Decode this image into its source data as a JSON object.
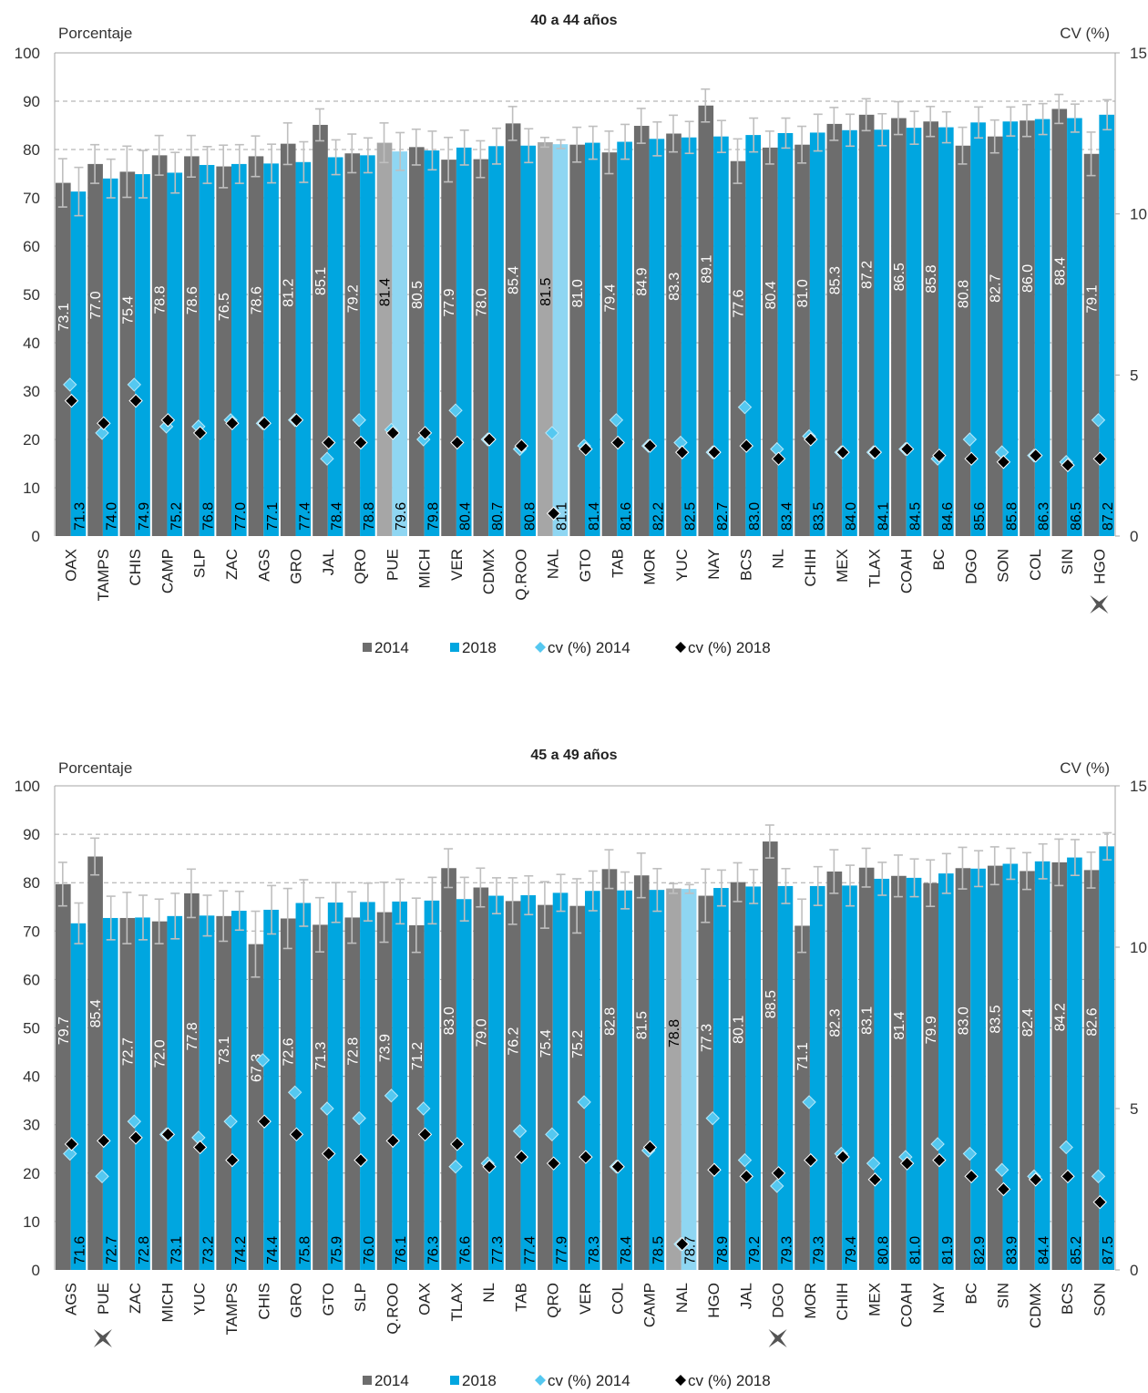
{
  "colors": {
    "bar_2014": "#6d6d6d",
    "bar_2018": "#00a6e0",
    "bar_2014_highlight": "#a6a6a6",
    "bar_2018_highlight": "#8fd6f2",
    "cv_2014": "#55c8f0",
    "cv_2018": "#000000",
    "error_bar": "#bfbfbf",
    "grid": "#a6a6a6"
  },
  "legend": {
    "items": [
      {
        "label": "2014",
        "marker": "square",
        "color": "#6d6d6d"
      },
      {
        "label": "2018",
        "marker": "square",
        "color": "#00a6e0"
      },
      {
        "label": "cv (%) 2014",
        "marker": "diamond",
        "color": "#55c8f0"
      },
      {
        "label": "cv (%) 2018",
        "marker": "diamond",
        "color": "#000000"
      }
    ]
  },
  "chart_data": [
    {
      "type": "bar",
      "title": "40 a 44 años",
      "ylabel": "Porcentaje",
      "y2label": "CV (%)",
      "ylim": [
        0,
        100
      ],
      "y2lim": [
        0,
        15
      ],
      "yticks": [
        "0",
        "10",
        "20",
        "30",
        "40",
        "50",
        "60",
        "70",
        "80",
        "90",
        "100"
      ],
      "y2ticks": [
        "0",
        "5",
        "10",
        "15"
      ],
      "grid": "dashed",
      "legend_position": "bottom",
      "categories": [
        "OAX",
        "TAMPS",
        "CHIS",
        "CAMP",
        "SLP",
        "ZAC",
        "AGS",
        "GRO",
        "JAL",
        "QRO",
        "PUE",
        "MICH",
        "VER",
        "CDMX",
        "Q.ROO",
        "NAL",
        "GTO",
        "TAB",
        "MOR",
        "YUC",
        "NAY",
        "BCS",
        "NL",
        "CHIH",
        "MEX",
        "TLAX",
        "COAH",
        "BC",
        "DGO",
        "SON",
        "COL",
        "SIN",
        "HGO"
      ],
      "highlight": [
        "PUE",
        "NAL"
      ],
      "marked": [
        "HGO"
      ],
      "series": [
        {
          "name": "2014",
          "axis": "left",
          "labels": [
            "73.1",
            "77.0",
            "75.4",
            "78.8",
            "78.6",
            "76.5",
            "78.6",
            "81.2",
            "85.1",
            "79.2",
            "81.4",
            "80.5",
            "77.9",
            "78.0",
            "85.4",
            "81.5",
            "81.0",
            "79.4",
            "84.9",
            "83.3",
            "89.1",
            "77.6",
            "80.4",
            "81.0",
            "85.3",
            "87.2",
            "86.5",
            "85.8",
            "80.8",
            "82.7",
            "86.0",
            "88.4",
            "79.1"
          ],
          "values": [
            73.1,
            77.0,
            75.4,
            78.8,
            78.6,
            76.5,
            78.6,
            81.2,
            85.1,
            79.2,
            81.4,
            80.5,
            77.9,
            78.0,
            85.4,
            81.5,
            81.0,
            79.4,
            84.9,
            83.3,
            89.1,
            77.6,
            80.4,
            81.0,
            85.3,
            87.2,
            86.5,
            85.8,
            80.8,
            82.7,
            86.0,
            88.4,
            79.1
          ]
        },
        {
          "name": "2018",
          "axis": "left",
          "labels": [
            "71.3",
            "74.0",
            "74.9",
            "75.2",
            "76.8",
            "77.0",
            "77.1",
            "77.4",
            "78.4",
            "78.8",
            "79.6",
            "79.8",
            "80.4",
            "80.7",
            "80.8",
            "81.1",
            "81.4",
            "81.6",
            "82.2",
            "82.5",
            "82.7",
            "83.0",
            "83.4",
            "83.5",
            "84.0",
            "84.1",
            "84.5",
            "84.6",
            "85.6",
            "85.8",
            "86.3",
            "86.5",
            "87.2"
          ],
          "values": [
            71.3,
            74.0,
            74.9,
            75.2,
            76.8,
            77.0,
            77.1,
            77.4,
            78.4,
            78.8,
            79.6,
            79.8,
            80.4,
            80.7,
            80.8,
            81.1,
            81.4,
            81.6,
            82.2,
            82.5,
            82.7,
            83.0,
            83.4,
            83.5,
            84.0,
            84.1,
            84.5,
            84.6,
            85.6,
            85.8,
            86.3,
            86.5,
            87.2
          ]
        },
        {
          "name": "cv (%) 2014",
          "axis": "right",
          "values": [
            4.7,
            3.2,
            4.7,
            3.4,
            3.4,
            3.6,
            3.5,
            3.6,
            2.4,
            3.6,
            3.3,
            3.0,
            3.9,
            3.0,
            2.7,
            3.2,
            2.8,
            3.6,
            2.8,
            2.9,
            2.6,
            4.0,
            2.7,
            3.1,
            2.6,
            2.6,
            2.7,
            2.4,
            3.0,
            2.6,
            2.5,
            2.3,
            3.6
          ]
        },
        {
          "name": "cv (%) 2018",
          "axis": "right",
          "values": [
            4.2,
            3.5,
            4.2,
            3.6,
            3.2,
            3.5,
            3.5,
            3.6,
            2.9,
            2.9,
            3.2,
            3.2,
            2.9,
            3.0,
            2.8,
            0.7,
            2.7,
            2.9,
            2.8,
            2.6,
            2.6,
            2.8,
            2.4,
            3.0,
            2.6,
            2.6,
            2.7,
            2.5,
            2.4,
            2.3,
            2.5,
            2.2,
            2.4
          ]
        }
      ],
      "error": {
        "2014": [
          5.0,
          4.0,
          5.3,
          4.1,
          4.3,
          4.4,
          4.2,
          4.3,
          3.3,
          4.0,
          4.1,
          3.7,
          4.6,
          3.8,
          3.5,
          1.0,
          3.6,
          4.4,
          3.6,
          3.8,
          3.4,
          4.6,
          3.4,
          3.8,
          3.4,
          3.3,
          3.4,
          3.1,
          3.8,
          3.4,
          3.3,
          3.0,
          4.5
        ],
        "2018": [
          5.0,
          4.0,
          4.9,
          4.2,
          3.8,
          4.0,
          4.0,
          4.2,
          3.6,
          3.6,
          3.9,
          4.0,
          3.6,
          3.7,
          3.5,
          0.9,
          3.4,
          3.6,
          3.5,
          3.3,
          3.3,
          3.5,
          3.1,
          3.8,
          3.3,
          3.3,
          3.4,
          3.2,
          3.2,
          3.0,
          3.2,
          2.9,
          3.1
        ]
      }
    },
    {
      "type": "bar",
      "title": "45 a 49 años",
      "ylabel": "Porcentaje",
      "y2label": "CV (%)",
      "ylim": [
        0,
        100
      ],
      "y2lim": [
        0,
        15
      ],
      "yticks": [
        "0",
        "10",
        "20",
        "30",
        "40",
        "50",
        "60",
        "70",
        "80",
        "90",
        "100"
      ],
      "y2ticks": [
        "0",
        "5",
        "10",
        "15"
      ],
      "grid": "dashed",
      "legend_position": "bottom",
      "categories": [
        "AGS",
        "PUE",
        "ZAC",
        "MICH",
        "YUC",
        "TAMPS",
        "CHIS",
        "GRO",
        "GTO",
        "SLP",
        "Q.ROO",
        "OAX",
        "TLAX",
        "NL",
        "TAB",
        "QRO",
        "VER",
        "COL",
        "CAMP",
        "NAL",
        "HGO",
        "JAL",
        "DGO",
        "MOR",
        "CHIH",
        "MEX",
        "COAH",
        "NAY",
        "BC",
        "SIN",
        "CDMX",
        "BCS",
        "SON"
      ],
      "highlight": [
        "NAL"
      ],
      "marked": [
        "PUE",
        "DGO"
      ],
      "series": [
        {
          "name": "2014",
          "axis": "left",
          "labels": [
            "79.7",
            "85.4",
            "72.7",
            "72.0",
            "77.8",
            "73.1",
            "67.3",
            "72.6",
            "71.3",
            "72.8",
            "73.9",
            "71.2",
            "83.0",
            "79.0",
            "76.2",
            "75.4",
            "75.2",
            "82.8",
            "81.5",
            "78.8",
            "77.3",
            "80.1",
            "88.5",
            "71.1",
            "82.3",
            "83.1",
            "81.4",
            "79.9",
            "83.0",
            "83.5",
            "82.4",
            "84.2",
            "82.6"
          ],
          "values": [
            79.7,
            85.4,
            72.7,
            72.0,
            77.8,
            73.1,
            67.3,
            72.6,
            71.3,
            72.8,
            73.9,
            71.2,
            83.0,
            79.0,
            76.2,
            75.4,
            75.2,
            82.8,
            81.5,
            78.8,
            77.3,
            80.1,
            88.5,
            71.1,
            82.3,
            83.1,
            81.4,
            79.9,
            83.0,
            83.5,
            82.4,
            84.2,
            82.6
          ]
        },
        {
          "name": "2018",
          "axis": "left",
          "labels": [
            "71.6",
            "72.7",
            "72.8",
            "73.1",
            "73.2",
            "74.2",
            "74.4",
            "75.8",
            "75.9",
            "76.0",
            "76.1",
            "76.3",
            "76.6",
            "77.3",
            "77.4",
            "77.9",
            "78.3",
            "78.4",
            "78.5",
            "78.7",
            "78.9",
            "79.2",
            "79.3",
            "79.3",
            "79.4",
            "80.8",
            "81.0",
            "81.9",
            "82.9",
            "83.9",
            "84.4",
            "85.2",
            "87.5"
          ],
          "values": [
            71.6,
            72.7,
            72.8,
            73.1,
            73.2,
            74.2,
            74.4,
            75.8,
            75.9,
            76.0,
            76.1,
            76.3,
            76.6,
            77.3,
            77.4,
            77.9,
            78.3,
            78.4,
            78.5,
            78.7,
            78.9,
            79.2,
            79.3,
            79.3,
            79.4,
            80.8,
            81.0,
            81.9,
            82.9,
            83.9,
            84.4,
            85.2,
            87.5
          ]
        },
        {
          "name": "cv (%) 2014",
          "axis": "right",
          "values": [
            3.6,
            2.9,
            4.6,
            4.2,
            4.1,
            4.6,
            6.5,
            5.5,
            5.0,
            4.7,
            5.4,
            5.0,
            3.2,
            3.3,
            4.3,
            4.2,
            5.2,
            3.2,
            3.7,
            0.8,
            4.7,
            3.4,
            2.6,
            5.2,
            3.6,
            3.3,
            3.5,
            3.9,
            3.6,
            3.1,
            2.9,
            3.8,
            2.9
          ]
        },
        {
          "name": "cv (%) 2018",
          "axis": "right",
          "values": [
            3.9,
            4.0,
            4.1,
            4.2,
            3.8,
            3.4,
            4.6,
            4.2,
            3.6,
            3.4,
            4.0,
            4.2,
            3.9,
            3.2,
            3.5,
            3.3,
            3.5,
            3.2,
            3.8,
            0.8,
            3.1,
            2.9,
            3.0,
            3.4,
            3.5,
            2.8,
            3.3,
            3.4,
            2.9,
            2.5,
            2.8,
            2.9,
            2.1
          ]
        }
      ],
      "error": {
        "2014": [
          4.5,
          3.8,
          5.3,
          4.6,
          5.0,
          5.2,
          6.8,
          6.2,
          5.6,
          5.3,
          6.2,
          5.6,
          4.0,
          4.0,
          4.8,
          4.8,
          5.6,
          4.0,
          4.6,
          1.0,
          5.5,
          4.0,
          3.4,
          5.5,
          4.5,
          4.0,
          4.3,
          4.8,
          4.3,
          3.9,
          3.8,
          4.8,
          3.7
        ],
        "2018": [
          4.2,
          4.5,
          4.6,
          4.7,
          4.2,
          4.0,
          5.0,
          4.8,
          4.1,
          3.9,
          4.6,
          4.8,
          4.5,
          3.7,
          4.0,
          3.8,
          4.1,
          3.8,
          4.4,
          0.9,
          3.7,
          3.5,
          3.6,
          4.0,
          4.2,
          3.4,
          3.9,
          4.1,
          3.7,
          3.2,
          3.6,
          3.7,
          2.8
        ]
      }
    }
  ]
}
